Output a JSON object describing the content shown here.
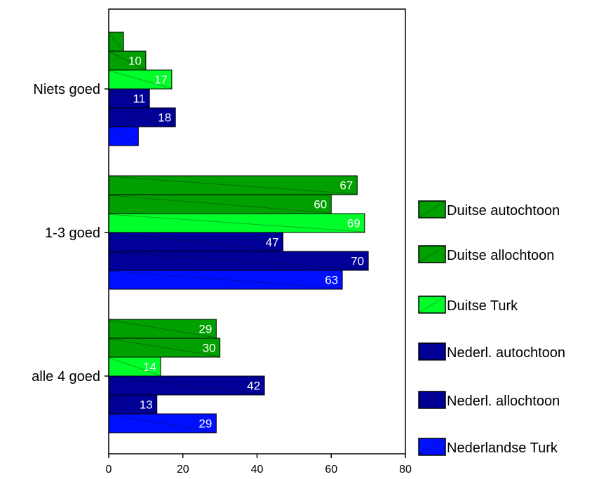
{
  "chart_data": {
    "type": "bar",
    "orientation": "horizontal",
    "categories": [
      "Niets goed",
      "1-3 goed",
      "alle 4 goed"
    ],
    "series": [
      {
        "name": "Duitse autochtoon",
        "values": [
          4,
          67,
          29
        ],
        "labels": [
          "",
          "67",
          "29"
        ],
        "color": "#00a000"
      },
      {
        "name": "Duitse allochtoon",
        "values": [
          10,
          60,
          30
        ],
        "labels": [
          "10",
          "60",
          "30"
        ],
        "color": "#00a000"
      },
      {
        "name": "Duitse Turk",
        "values": [
          17,
          69,
          14
        ],
        "labels": [
          "17",
          "69",
          "14"
        ],
        "color": "#00ff2a"
      },
      {
        "name": "Nederl. autochtoon",
        "values": [
          11,
          47,
          42
        ],
        "labels": [
          "11",
          "47",
          "42"
        ],
        "color": "#000099"
      },
      {
        "name": "Nederl. allochtoon",
        "values": [
          18,
          70,
          13
        ],
        "labels": [
          "18",
          "70",
          "13"
        ],
        "color": "#000099"
      },
      {
        "name": "Nederlandse Turk",
        "values": [
          8,
          63,
          29
        ],
        "labels": [
          "",
          "63",
          "29"
        ],
        "color": "#0010ff"
      }
    ],
    "xlim": [
      0,
      80
    ],
    "xticks": [
      "0",
      "20",
      "40",
      "60",
      "80"
    ],
    "title": "",
    "xlabel": "",
    "ylabel": "",
    "legend": "right",
    "grid": false
  }
}
